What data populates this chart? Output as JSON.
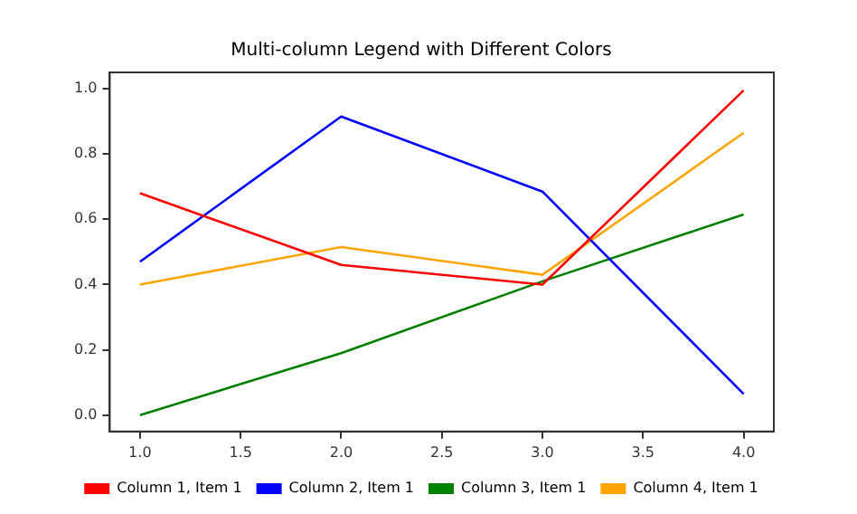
{
  "chart_data": {
    "type": "line",
    "title": "Multi-column Legend with Different Colors",
    "x": [
      1,
      2,
      3,
      4
    ],
    "series": [
      {
        "name": "Column 1, Item 1",
        "color": "#ff0000",
        "values": [
          0.68,
          0.46,
          0.4,
          0.995
        ]
      },
      {
        "name": "Column 2, Item 1",
        "color": "#0000ff",
        "values": [
          0.47,
          0.915,
          0.685,
          0.065
        ]
      },
      {
        "name": "Column 3, Item 1",
        "color": "#008000",
        "values": [
          0.0,
          0.19,
          0.41,
          0.615
        ]
      },
      {
        "name": "Column 4, Item 1",
        "color": "#ffa500",
        "values": [
          0.4,
          0.515,
          0.43,
          0.865
        ]
      }
    ],
    "xlim": [
      0.85,
      4.15
    ],
    "xticks": [
      {
        "value": 1,
        "label": "1.0"
      },
      {
        "value": 1.5,
        "label": "1.5"
      },
      {
        "value": 2,
        "label": "2.0"
      },
      {
        "value": 2.5,
        "label": "2.5"
      },
      {
        "value": 3,
        "label": "3.0"
      },
      {
        "value": 3.5,
        "label": "3.5"
      },
      {
        "value": 4,
        "label": "4.0"
      }
    ],
    "ylim": [
      -0.05,
      1.05
    ],
    "yticks": [
      {
        "value": 0,
        "label": "0.0"
      },
      {
        "value": 0.2,
        "label": "0.2"
      },
      {
        "value": 0.4,
        "label": "0.4"
      },
      {
        "value": 0.6,
        "label": "0.6"
      },
      {
        "value": 0.8,
        "label": "0.8"
      },
      {
        "value": 1,
        "label": "1.0"
      }
    ],
    "grid": false,
    "legend": "bottom",
    "marker": "none",
    "line_style": "solid"
  }
}
